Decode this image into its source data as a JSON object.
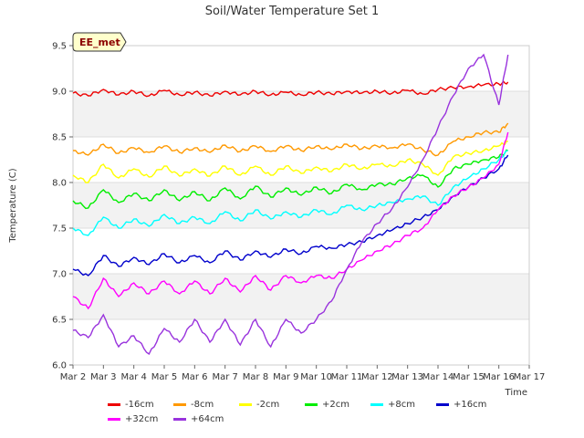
{
  "chart_data": {
    "type": "line",
    "title": "Soil/Water Temperature Set 1",
    "xlabel": "Time",
    "ylabel": "Temperature (C)",
    "site_label": "EE_met",
    "x_ticks": [
      "Mar 2",
      "Mar 3",
      "Mar 4",
      "Mar 5",
      "Mar 6",
      "Mar 7",
      "Mar 8",
      "Mar 9",
      "Mar 10",
      "Mar 11",
      "Mar 12",
      "Mar 13",
      "Mar 14",
      "Mar 15",
      "Mar 16",
      "Mar 17"
    ],
    "y_ticks": [
      "6.0",
      "6.5",
      "7.0",
      "7.5",
      "8.0",
      "8.5",
      "9.0",
      "9.5"
    ],
    "xlim": [
      "Mar 2",
      "Mar 17"
    ],
    "ylim": [
      6.0,
      9.5
    ],
    "background_bands": true,
    "legend_position": "bottom",
    "x_dates": [
      "Mar 2",
      "Mar 2.5",
      "Mar 3",
      "Mar 3.5",
      "Mar 4",
      "Mar 4.5",
      "Mar 5",
      "Mar 5.5",
      "Mar 6",
      "Mar 6.5",
      "Mar 7",
      "Mar 7.5",
      "Mar 8",
      "Mar 8.5",
      "Mar 9",
      "Mar 9.5",
      "Mar 10",
      "Mar 10.5",
      "Mar 11",
      "Mar 11.5",
      "Mar 12",
      "Mar 12.5",
      "Mar 13",
      "Mar 13.5",
      "Mar 14",
      "Mar 14.5",
      "Mar 15",
      "Mar 15.5",
      "Mar 16",
      "Mar 16.3"
    ],
    "series": [
      {
        "name": "-16cm",
        "color": "#ee0000",
        "values": [
          8.98,
          8.95,
          9.02,
          8.96,
          9.0,
          8.95,
          9.01,
          8.96,
          8.99,
          8.95,
          9.0,
          8.96,
          9.0,
          8.96,
          8.99,
          8.96,
          8.99,
          8.97,
          9.0,
          8.98,
          9.0,
          8.98,
          9.01,
          8.97,
          9.02,
          9.04,
          9.05,
          9.07,
          9.08,
          9.1
        ]
      },
      {
        "name": "-8cm",
        "color": "#ff9900",
        "values": [
          8.35,
          8.3,
          8.42,
          8.32,
          8.38,
          8.33,
          8.4,
          8.33,
          8.38,
          8.33,
          8.41,
          8.34,
          8.4,
          8.34,
          8.4,
          8.35,
          8.4,
          8.36,
          8.42,
          8.37,
          8.4,
          8.38,
          8.42,
          8.36,
          8.3,
          8.45,
          8.5,
          8.55,
          8.55,
          8.65
        ]
      },
      {
        "name": "-2cm",
        "color": "#ffff00",
        "values": [
          8.08,
          8.0,
          8.2,
          8.05,
          8.15,
          8.06,
          8.18,
          8.07,
          8.15,
          8.07,
          8.18,
          8.08,
          8.18,
          8.08,
          8.18,
          8.1,
          8.17,
          8.12,
          8.2,
          8.15,
          8.2,
          8.18,
          8.25,
          8.2,
          8.08,
          8.28,
          8.32,
          8.35,
          8.4,
          8.45
        ]
      },
      {
        "name": "+2cm",
        "color": "#00ee00",
        "values": [
          7.8,
          7.72,
          7.92,
          7.78,
          7.88,
          7.8,
          7.92,
          7.8,
          7.9,
          7.8,
          7.94,
          7.82,
          7.96,
          7.84,
          7.94,
          7.86,
          7.95,
          7.88,
          7.98,
          7.92,
          7.98,
          7.98,
          8.05,
          8.08,
          7.95,
          8.15,
          8.2,
          8.25,
          8.28,
          8.35
        ]
      },
      {
        "name": "+8cm",
        "color": "#00ffff",
        "values": [
          7.5,
          7.42,
          7.62,
          7.5,
          7.6,
          7.52,
          7.65,
          7.55,
          7.62,
          7.55,
          7.68,
          7.58,
          7.7,
          7.6,
          7.68,
          7.62,
          7.7,
          7.65,
          7.75,
          7.7,
          7.75,
          7.78,
          7.82,
          7.85,
          7.75,
          7.95,
          8.05,
          8.15,
          8.25,
          8.35
        ]
      },
      {
        "name": "+16cm",
        "color": "#0000cc",
        "values": [
          7.05,
          6.98,
          7.2,
          7.08,
          7.18,
          7.1,
          7.22,
          7.12,
          7.2,
          7.12,
          7.25,
          7.15,
          7.25,
          7.18,
          7.27,
          7.22,
          7.3,
          7.28,
          7.32,
          7.35,
          7.42,
          7.48,
          7.55,
          7.62,
          7.7,
          7.85,
          7.95,
          8.05,
          8.15,
          8.3
        ]
      },
      {
        "name": "+32cm",
        "color": "#ff00ff",
        "values": [
          6.75,
          6.62,
          6.95,
          6.75,
          6.9,
          6.78,
          6.92,
          6.78,
          6.92,
          6.78,
          6.95,
          6.8,
          6.98,
          6.82,
          6.98,
          6.9,
          6.98,
          6.95,
          7.05,
          7.15,
          7.25,
          7.32,
          7.42,
          7.5,
          7.7,
          7.85,
          7.95,
          8.05,
          8.2,
          8.55
        ]
      },
      {
        "name": "+64cm",
        "color": "#9933dd",
        "values": [
          6.38,
          6.3,
          6.55,
          6.2,
          6.32,
          6.12,
          6.4,
          6.25,
          6.5,
          6.25,
          6.5,
          6.22,
          6.5,
          6.2,
          6.5,
          6.35,
          6.5,
          6.7,
          7.05,
          7.35,
          7.55,
          7.72,
          7.95,
          8.25,
          8.6,
          8.95,
          9.25,
          9.4,
          8.85,
          9.4
        ]
      }
    ]
  }
}
